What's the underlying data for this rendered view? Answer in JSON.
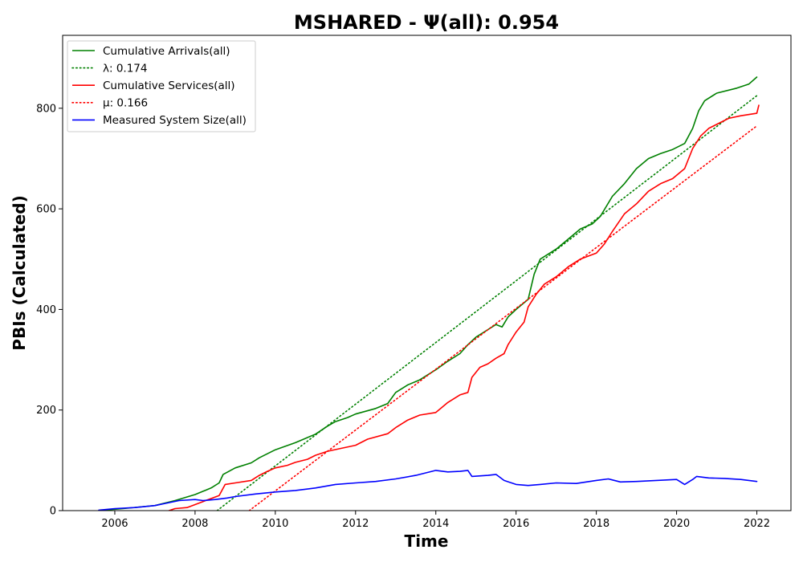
{
  "chart_data": {
    "type": "line",
    "title": "MSHARED -  Ψ(all): 0.954",
    "xlabel": "Time",
    "ylabel": "PBIs (Calculated)",
    "xlim": [
      2004.7,
      2022.85
    ],
    "ylim": [
      0,
      945
    ],
    "x_ticks": [
      2006,
      2008,
      2010,
      2012,
      2014,
      2016,
      2018,
      2020,
      2022
    ],
    "y_ticks": [
      0,
      200,
      400,
      600,
      800
    ],
    "grid": false,
    "legend_position": "upper-left",
    "series": [
      {
        "name": "Cumulative Arrivals(all)",
        "color": "#008000",
        "style": "solid",
        "points": [
          [
            2005.6,
            0
          ],
          [
            2006.2,
            4
          ],
          [
            2007.0,
            10
          ],
          [
            2007.5,
            20
          ],
          [
            2008.0,
            32
          ],
          [
            2008.4,
            45
          ],
          [
            2008.6,
            55
          ],
          [
            2008.7,
            72
          ],
          [
            2009.0,
            85
          ],
          [
            2009.4,
            95
          ],
          [
            2009.6,
            105
          ],
          [
            2009.8,
            113
          ],
          [
            2010.0,
            121
          ],
          [
            2010.5,
            135
          ],
          [
            2011.0,
            152
          ],
          [
            2011.3,
            168
          ],
          [
            2011.5,
            177
          ],
          [
            2011.8,
            185
          ],
          [
            2012.0,
            192
          ],
          [
            2012.5,
            203
          ],
          [
            2012.8,
            213
          ],
          [
            2013.0,
            235
          ],
          [
            2013.3,
            250
          ],
          [
            2013.6,
            260
          ],
          [
            2014.0,
            280
          ],
          [
            2014.3,
            297
          ],
          [
            2014.6,
            312
          ],
          [
            2014.8,
            330
          ],
          [
            2015.0,
            345
          ],
          [
            2015.3,
            360
          ],
          [
            2015.5,
            370
          ],
          [
            2015.65,
            365
          ],
          [
            2015.8,
            385
          ],
          [
            2016.0,
            400
          ],
          [
            2016.3,
            420
          ],
          [
            2016.45,
            470
          ],
          [
            2016.6,
            500
          ],
          [
            2017.0,
            520
          ],
          [
            2017.3,
            540
          ],
          [
            2017.6,
            560
          ],
          [
            2017.9,
            570
          ],
          [
            2018.1,
            585
          ],
          [
            2018.4,
            625
          ],
          [
            2018.7,
            650
          ],
          [
            2019.0,
            680
          ],
          [
            2019.3,
            700
          ],
          [
            2019.6,
            710
          ],
          [
            2019.9,
            718
          ],
          [
            2020.2,
            730
          ],
          [
            2020.4,
            760
          ],
          [
            2020.55,
            795
          ],
          [
            2020.7,
            815
          ],
          [
            2021.0,
            830
          ],
          [
            2021.5,
            840
          ],
          [
            2021.8,
            848
          ],
          [
            2022.0,
            862
          ]
        ]
      },
      {
        "name": "λ: 0.174",
        "color": "#008000",
        "style": "dotted",
        "points": [
          [
            2008.55,
            0
          ],
          [
            2022.0,
            825
          ]
        ]
      },
      {
        "name": "Cumulative Services(all)",
        "color": "#ff0000",
        "style": "solid",
        "points": [
          [
            2007.35,
            0
          ],
          [
            2007.5,
            4
          ],
          [
            2007.8,
            6
          ],
          [
            2008.0,
            12
          ],
          [
            2008.2,
            18
          ],
          [
            2008.6,
            30
          ],
          [
            2008.75,
            52
          ],
          [
            2009.0,
            55
          ],
          [
            2009.4,
            60
          ],
          [
            2009.6,
            70
          ],
          [
            2009.8,
            78
          ],
          [
            2010.0,
            85
          ],
          [
            2010.3,
            90
          ],
          [
            2010.5,
            96
          ],
          [
            2010.8,
            102
          ],
          [
            2011.0,
            110
          ],
          [
            2011.3,
            118
          ],
          [
            2011.6,
            123
          ],
          [
            2012.0,
            130
          ],
          [
            2012.3,
            142
          ],
          [
            2012.8,
            153
          ],
          [
            2013.0,
            165
          ],
          [
            2013.3,
            180
          ],
          [
            2013.6,
            190
          ],
          [
            2014.0,
            195
          ],
          [
            2014.3,
            215
          ],
          [
            2014.6,
            230
          ],
          [
            2014.8,
            235
          ],
          [
            2014.9,
            265
          ],
          [
            2015.1,
            285
          ],
          [
            2015.3,
            292
          ],
          [
            2015.5,
            303
          ],
          [
            2015.7,
            312
          ],
          [
            2015.8,
            330
          ],
          [
            2016.0,
            355
          ],
          [
            2016.2,
            375
          ],
          [
            2016.3,
            405
          ],
          [
            2016.5,
            430
          ],
          [
            2016.7,
            450
          ],
          [
            2017.0,
            465
          ],
          [
            2017.3,
            485
          ],
          [
            2017.6,
            500
          ],
          [
            2018.0,
            512
          ],
          [
            2018.2,
            530
          ],
          [
            2018.4,
            555
          ],
          [
            2018.7,
            590
          ],
          [
            2019.0,
            610
          ],
          [
            2019.3,
            635
          ],
          [
            2019.6,
            650
          ],
          [
            2019.9,
            660
          ],
          [
            2020.2,
            680
          ],
          [
            2020.4,
            720
          ],
          [
            2020.6,
            745
          ],
          [
            2020.8,
            760
          ],
          [
            2021.0,
            768
          ],
          [
            2021.3,
            780
          ],
          [
            2021.6,
            785
          ],
          [
            2022.0,
            790
          ],
          [
            2022.05,
            806
          ]
        ]
      },
      {
        "name": "μ: 0.166",
        "color": "#ff0000",
        "style": "dotted",
        "points": [
          [
            2009.35,
            0
          ],
          [
            2022.0,
            765
          ]
        ]
      },
      {
        "name": "Measured System Size(all)",
        "color": "#0000ff",
        "style": "solid",
        "points": [
          [
            2005.6,
            1
          ],
          [
            2006.0,
            4
          ],
          [
            2006.5,
            6
          ],
          [
            2007.0,
            10
          ],
          [
            2007.3,
            15
          ],
          [
            2007.6,
            20
          ],
          [
            2008.0,
            22
          ],
          [
            2008.2,
            20
          ],
          [
            2008.5,
            22
          ],
          [
            2008.8,
            25
          ],
          [
            2009.0,
            28
          ],
          [
            2009.5,
            33
          ],
          [
            2010.0,
            37
          ],
          [
            2010.5,
            40
          ],
          [
            2011.0,
            45
          ],
          [
            2011.5,
            52
          ],
          [
            2012.0,
            55
          ],
          [
            2012.5,
            58
          ],
          [
            2013.0,
            63
          ],
          [
            2013.5,
            70
          ],
          [
            2014.0,
            80
          ],
          [
            2014.3,
            77
          ],
          [
            2014.6,
            78
          ],
          [
            2014.8,
            80
          ],
          [
            2014.9,
            68
          ],
          [
            2015.3,
            70
          ],
          [
            2015.5,
            72
          ],
          [
            2015.7,
            60
          ],
          [
            2016.0,
            52
          ],
          [
            2016.3,
            50
          ],
          [
            2016.6,
            52
          ],
          [
            2017.0,
            55
          ],
          [
            2017.5,
            54
          ],
          [
            2018.0,
            60
          ],
          [
            2018.3,
            63
          ],
          [
            2018.6,
            57
          ],
          [
            2019.0,
            58
          ],
          [
            2019.5,
            60
          ],
          [
            2020.0,
            62
          ],
          [
            2020.2,
            52
          ],
          [
            2020.4,
            62
          ],
          [
            2020.5,
            68
          ],
          [
            2020.8,
            65
          ],
          [
            2021.2,
            64
          ],
          [
            2021.6,
            62
          ],
          [
            2022.0,
            58
          ]
        ]
      }
    ]
  }
}
